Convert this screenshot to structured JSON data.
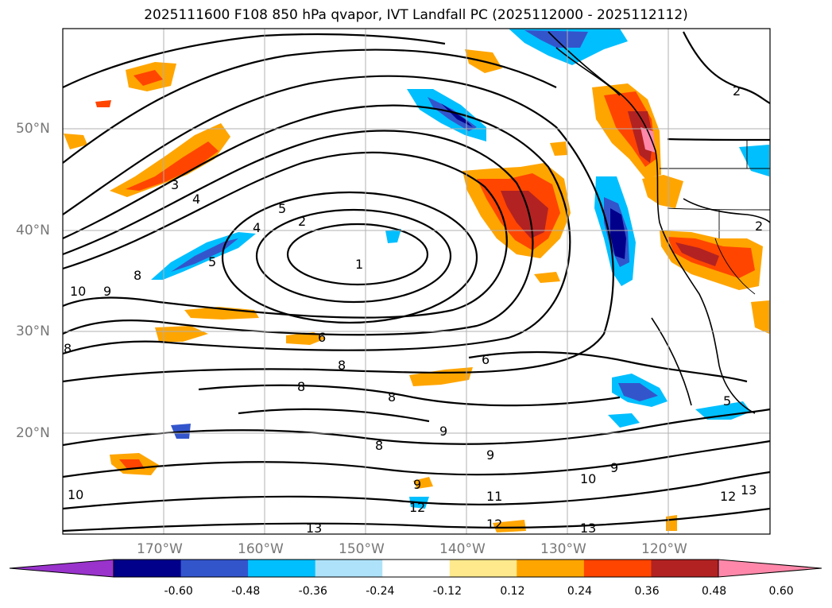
{
  "title": "2025111600 F108 850 hPa qvapor, IVT Landfall PC (2025112000 - 2025112112)",
  "lat_labels": [
    "50°N",
    "40°N",
    "30°N",
    "20°N"
  ],
  "lon_labels": [
    "170°W",
    "160°W",
    "150°W",
    "140°W",
    "130°W",
    "120°W"
  ],
  "contour_labels": [
    "2",
    "3",
    "4",
    "4",
    "5",
    "2",
    "1",
    "5",
    "10",
    "9",
    "8",
    "6",
    "6",
    "8",
    "8",
    "8",
    "9",
    "8",
    "9",
    "9",
    "9",
    "10",
    "11",
    "10",
    "12",
    "12",
    "13",
    "12",
    "13",
    "13",
    "5",
    "2",
    "8"
  ],
  "colorbar": {
    "ticks": [
      "-0.60",
      "-0.48",
      "-0.36",
      "-0.24",
      "-0.12",
      "0.12",
      "0.24",
      "0.36",
      "0.48",
      "0.60"
    ],
    "colors": [
      "#9933cc",
      "#00008b",
      "#3355cc",
      "#00bfff",
      "#aee2fa",
      "#ffffff",
      "#ffe98c",
      "#ffa500",
      "#ff4500",
      "#b22222",
      "#ff88aa"
    ]
  }
}
